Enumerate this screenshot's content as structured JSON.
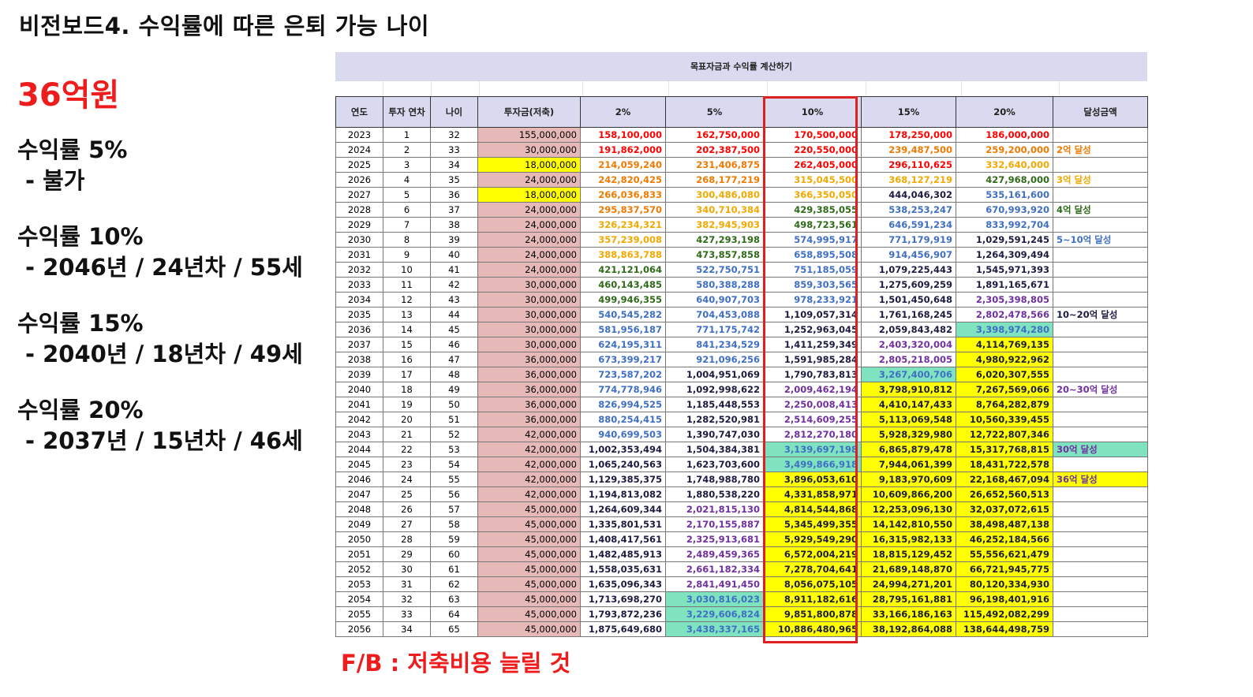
{
  "title": "비전보드4. 수익률에 따른 은퇴 가능 나이",
  "target_amount": "36억원",
  "notes": [
    {
      "head": "수익률 5%",
      "detail": "- 불가"
    },
    {
      "head": "수익률 10%",
      "detail": "- 2046년 / 24년차 / 55세"
    },
    {
      "head": "수익률 15%",
      "detail": "- 2040년 / 18년차 / 49세"
    },
    {
      "head": "수익률 20%",
      "detail": "- 2037년 / 15년차 / 46세"
    }
  ],
  "feedback": "F/B : 저축비용 늘릴 것",
  "sheet": {
    "banner": "목표자금과 수익률 계산하기",
    "headers": [
      "연도",
      "투자 연차",
      "나이",
      "투자금(저축)",
      "2%",
      "5%",
      "10%",
      "15%",
      "20%",
      "달성금액"
    ],
    "colors": {
      "yellow_highlight": "#ffff00",
      "teal_highlight": "#7fe3c0",
      "investment_bg": "#e6b8b7",
      "header_bg": "#d9d9ef",
      "target_box": "#e02020"
    },
    "rows": [
      [
        "2023",
        "1",
        "32",
        "155,000,000",
        "158,100,000",
        "162,750,000",
        "170,500,000",
        "178,250,000",
        "186,000,000",
        ""
      ],
      [
        "2024",
        "2",
        "33",
        "30,000,000",
        "191,862,000",
        "202,387,500",
        "220,550,000",
        "239,487,500",
        "259,200,000",
        "2억 달성"
      ],
      [
        "2025",
        "3",
        "34",
        "18,000,000",
        "214,059,240",
        "231,406,875",
        "262,405,000",
        "296,110,625",
        "332,640,000",
        ""
      ],
      [
        "2026",
        "4",
        "35",
        "24,000,000",
        "242,820,425",
        "268,177,219",
        "315,045,500",
        "368,127,219",
        "427,968,000",
        "3억 달성"
      ],
      [
        "2027",
        "5",
        "36",
        "18,000,000",
        "266,036,833",
        "300,486,080",
        "366,350,050",
        "444,046,302",
        "535,161,600",
        ""
      ],
      [
        "2028",
        "6",
        "37",
        "24,000,000",
        "295,837,570",
        "340,710,384",
        "429,385,055",
        "538,253,247",
        "670,993,920",
        "4억 달성"
      ],
      [
        "2029",
        "7",
        "38",
        "24,000,000",
        "326,234,321",
        "382,945,903",
        "498,723,561",
        "646,591,234",
        "833,992,704",
        ""
      ],
      [
        "2030",
        "8",
        "39",
        "24,000,000",
        "357,239,008",
        "427,293,198",
        "574,995,917",
        "771,179,919",
        "1,029,591,245",
        "5~10억 달성"
      ],
      [
        "2031",
        "9",
        "40",
        "24,000,000",
        "388,863,788",
        "473,857,858",
        "658,895,508",
        "914,456,907",
        "1,264,309,494",
        ""
      ],
      [
        "2032",
        "10",
        "41",
        "24,000,000",
        "421,121,064",
        "522,750,751",
        "751,185,059",
        "1,079,225,443",
        "1,545,971,393",
        ""
      ],
      [
        "2033",
        "11",
        "42",
        "30,000,000",
        "460,143,485",
        "580,388,288",
        "859,303,565",
        "1,275,609,259",
        "1,891,165,671",
        ""
      ],
      [
        "2034",
        "12",
        "43",
        "30,000,000",
        "499,946,355",
        "640,907,703",
        "978,233,921",
        "1,501,450,648",
        "2,305,398,805",
        ""
      ],
      [
        "2035",
        "13",
        "44",
        "30,000,000",
        "540,545,282",
        "704,453,088",
        "1,109,057,314",
        "1,761,168,245",
        "2,802,478,566",
        "10~20억 달성"
      ],
      [
        "2036",
        "14",
        "45",
        "30,000,000",
        "581,956,187",
        "771,175,742",
        "1,252,963,045",
        "2,059,843,482",
        "3,398,974,280",
        ""
      ],
      [
        "2037",
        "15",
        "46",
        "30,000,000",
        "624,195,311",
        "841,234,529",
        "1,411,259,349",
        "2,403,320,004",
        "4,114,769,135",
        ""
      ],
      [
        "2038",
        "16",
        "47",
        "36,000,000",
        "673,399,217",
        "921,096,256",
        "1,591,985,284",
        "2,805,218,005",
        "4,980,922,962",
        ""
      ],
      [
        "2039",
        "17",
        "48",
        "36,000,000",
        "723,587,202",
        "1,004,951,069",
        "1,790,783,813",
        "3,267,400,706",
        "6,020,307,555",
        ""
      ],
      [
        "2040",
        "18",
        "49",
        "36,000,000",
        "774,778,946",
        "1,092,998,622",
        "2,009,462,194",
        "3,798,910,812",
        "7,267,569,066",
        "20~30억 달성"
      ],
      [
        "2041",
        "19",
        "50",
        "36,000,000",
        "826,994,525",
        "1,185,448,553",
        "2,250,008,413",
        "4,410,147,433",
        "8,764,282,879",
        ""
      ],
      [
        "2042",
        "20",
        "51",
        "36,000,000",
        "880,254,415",
        "1,282,520,981",
        "2,514,609,255",
        "5,113,069,548",
        "10,560,339,455",
        ""
      ],
      [
        "2043",
        "21",
        "52",
        "42,000,000",
        "940,699,503",
        "1,390,747,030",
        "2,812,270,180",
        "5,928,329,980",
        "12,722,807,346",
        ""
      ],
      [
        "2044",
        "22",
        "53",
        "42,000,000",
        "1,002,353,494",
        "1,504,384,381",
        "3,139,697,198",
        "6,865,879,478",
        "15,317,768,815",
        "30억 달성"
      ],
      [
        "2045",
        "23",
        "54",
        "42,000,000",
        "1,065,240,563",
        "1,623,703,600",
        "3,499,866,918",
        "7,944,061,399",
        "18,431,722,578",
        ""
      ],
      [
        "2046",
        "24",
        "55",
        "42,000,000",
        "1,129,385,375",
        "1,748,988,780",
        "3,896,053,610",
        "9,183,970,609",
        "22,168,467,094",
        "36억 달성"
      ],
      [
        "2047",
        "25",
        "56",
        "42,000,000",
        "1,194,813,082",
        "1,880,538,220",
        "4,331,858,971",
        "10,609,866,200",
        "26,652,560,513",
        ""
      ],
      [
        "2048",
        "26",
        "57",
        "45,000,000",
        "1,264,609,344",
        "2,021,815,130",
        "4,814,544,868",
        "12,253,096,130",
        "32,037,072,615",
        ""
      ],
      [
        "2049",
        "27",
        "58",
        "45,000,000",
        "1,335,801,531",
        "2,170,155,887",
        "5,345,499,355",
        "14,142,810,550",
        "38,498,487,138",
        ""
      ],
      [
        "2050",
        "28",
        "59",
        "45,000,000",
        "1,408,417,561",
        "2,325,913,681",
        "5,929,549,290",
        "16,315,982,133",
        "46,252,184,566",
        ""
      ],
      [
        "2051",
        "29",
        "60",
        "45,000,000",
        "1,482,485,913",
        "2,489,459,365",
        "6,572,004,219",
        "18,815,129,452",
        "55,556,621,479",
        ""
      ],
      [
        "2052",
        "30",
        "61",
        "45,000,000",
        "1,558,035,631",
        "2,661,182,334",
        "7,278,704,641",
        "21,689,148,870",
        "66,721,945,775",
        ""
      ],
      [
        "2053",
        "31",
        "62",
        "45,000,000",
        "1,635,096,343",
        "2,841,491,450",
        "8,056,075,105",
        "24,994,271,201",
        "80,120,334,930",
        ""
      ],
      [
        "2054",
        "32",
        "63",
        "45,000,000",
        "1,713,698,270",
        "3,030,816,023",
        "8,911,182,616",
        "28,795,161,881",
        "96,198,401,916",
        ""
      ],
      [
        "2055",
        "33",
        "64",
        "45,000,000",
        "1,793,872,236",
        "3,229,606,824",
        "9,851,800,878",
        "33,166,186,163",
        "115,492,082,299",
        ""
      ],
      [
        "2056",
        "34",
        "65",
        "45,000,000",
        "1,875,649,680",
        "3,438,337,165",
        "10,886,480,965",
        "38,192,864,088",
        "138,644,498,759",
        ""
      ]
    ]
  }
}
